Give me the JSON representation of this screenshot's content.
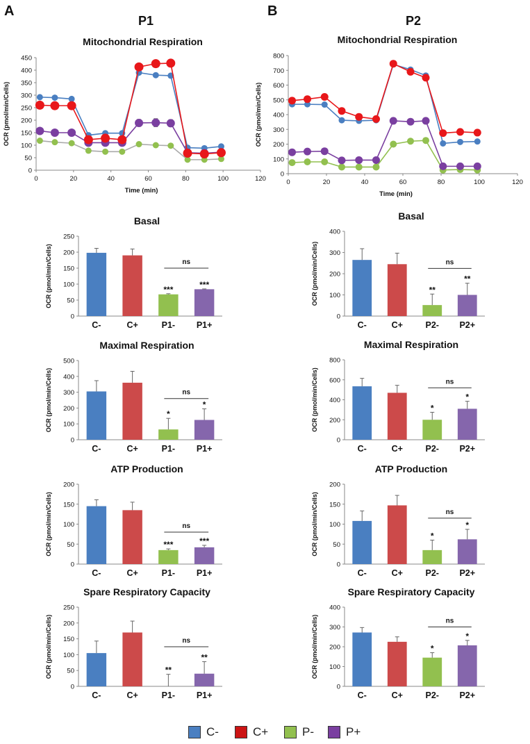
{
  "panels": [
    {
      "letter": "A",
      "title": "P1"
    },
    {
      "letter": "B",
      "title": "P2"
    }
  ],
  "legend": [
    {
      "label": "C-",
      "color": "#4a7fc1"
    },
    {
      "label": "C+",
      "color": "#cc1414"
    },
    {
      "label": "P-",
      "color": "#92c04f"
    },
    {
      "label": "P+",
      "color": "#7a3fa0"
    }
  ],
  "chart_data": [
    {
      "id": "p1-mito",
      "type": "line",
      "title": "Mitochondrial Respiration",
      "xlabel": "Time (min)",
      "ylabel": "OCR (pmol/min/Cells)",
      "xlim": [
        0,
        120
      ],
      "xticks": [
        0,
        20,
        40,
        60,
        80,
        100,
        120
      ],
      "ylim": [
        0,
        450
      ],
      "yticks": [
        0,
        50,
        100,
        150,
        200,
        250,
        300,
        350,
        400,
        450
      ],
      "x": [
        2,
        10,
        19,
        28,
        37,
        46,
        55,
        64,
        72,
        81,
        90,
        99
      ],
      "series": [
        {
          "name": "C-",
          "color": "#4a7fc1",
          "lineColor": "#4a7fc1",
          "marker": 4.5,
          "values": [
            292,
            290,
            285,
            140,
            148,
            148,
            390,
            380,
            378,
            90,
            88,
            95
          ]
        },
        {
          "name": "P-",
          "color": "#92c04f",
          "lineColor": "#aaaaaa",
          "marker": 4.5,
          "values": [
            118,
            112,
            108,
            78,
            74,
            74,
            104,
            100,
            98,
            42,
            42,
            45
          ]
        },
        {
          "name": "P+",
          "color": "#7a3fa0",
          "lineColor": "#7a3fa0",
          "marker": 6,
          "values": [
            157,
            150,
            150,
            110,
            110,
            110,
            189,
            190,
            188,
            70,
            68,
            72
          ],
          "errors": [
            0,
            0,
            0,
            0,
            0,
            0,
            14,
            16,
            14,
            0,
            0,
            0
          ]
        },
        {
          "name": "C+",
          "color": "#e8171a",
          "lineColor": "#e8171a",
          "marker": 6.5,
          "values": [
            260,
            258,
            258,
            122,
            128,
            122,
            413,
            426,
            428,
            68,
            65,
            70
          ]
        }
      ]
    },
    {
      "id": "p2-mito",
      "type": "line",
      "title": "Mitochondrial Respiration",
      "xlabel": "Time (min)",
      "ylabel": "OCR (pmol/min/Cells)",
      "xlim": [
        0,
        120
      ],
      "xticks": [
        0,
        20,
        40,
        60,
        80,
        100,
        120
      ],
      "ylim": [
        0,
        800
      ],
      "yticks": [
        0,
        100,
        200,
        300,
        400,
        500,
        600,
        700,
        800
      ],
      "x": [
        2,
        10,
        19,
        28,
        37,
        46,
        55,
        64,
        72,
        81,
        90,
        99
      ],
      "series": [
        {
          "name": "P-",
          "color": "#92c04f",
          "lineColor": "#92c04f",
          "marker": 5,
          "values": [
            75,
            80,
            80,
            45,
            45,
            45,
            200,
            220,
            225,
            25,
            28,
            25
          ]
        },
        {
          "name": "P+",
          "color": "#7a3fa0",
          "lineColor": "#7a3fa0",
          "marker": 5.5,
          "values": [
            145,
            150,
            152,
            90,
            92,
            92,
            358,
            352,
            358,
            50,
            50,
            50
          ]
        },
        {
          "name": "C-",
          "color": "#4a7fc1",
          "lineColor": "#4a7fc1",
          "marker": 4.5,
          "values": [
            470,
            470,
            468,
            362,
            358,
            362,
            740,
            705,
            665,
            205,
            215,
            218
          ]
        },
        {
          "name": "C+",
          "color": "#e8171a",
          "lineColor": "#e8171a",
          "marker": 5.5,
          "values": [
            495,
            505,
            520,
            425,
            385,
            370,
            745,
            690,
            650,
            275,
            283,
            278
          ]
        }
      ]
    },
    {
      "id": "p1-basal",
      "type": "bar",
      "title": "Basal",
      "ylabel": "OCR (pmol/min/Cells)",
      "categories": [
        "C-",
        "C+",
        "P1-",
        "P1+"
      ],
      "values": [
        198,
        190,
        68,
        84
      ],
      "errors": [
        14,
        20,
        2,
        1
      ],
      "colors": [
        "#4a7fc1",
        "#cc4a4a",
        "#92c04f",
        "#8566ac"
      ],
      "sig": [
        "",
        "",
        "***",
        "***"
      ],
      "ylim": [
        0,
        250
      ],
      "yticks": [
        0,
        50,
        100,
        150,
        200,
        250
      ],
      "ns": {
        "label": "ns",
        "from": 2,
        "to": 3,
        "y": 150
      }
    },
    {
      "id": "p2-basal",
      "type": "bar",
      "title": "Basal",
      "ylabel": "OCR (pmol/min/Cells)",
      "categories": [
        "C-",
        "C+",
        "P2-",
        "P2+"
      ],
      "values": [
        265,
        245,
        52,
        100
      ],
      "errors": [
        53,
        52,
        52,
        55
      ],
      "colors": [
        "#4a7fc1",
        "#cc4a4a",
        "#92c04f",
        "#8566ac"
      ],
      "sig": [
        "",
        "",
        "**",
        "**"
      ],
      "ylim": [
        0,
        400
      ],
      "yticks": [
        0,
        100,
        200,
        300,
        400
      ],
      "ns": {
        "label": "ns",
        "from": 2,
        "to": 3,
        "y": 225
      }
    },
    {
      "id": "p1-maximal",
      "type": "bar",
      "title": "Maximal Respiration",
      "ylabel": "OCR (pmol/min/Cells)",
      "categories": [
        "C-",
        "C+",
        "P1-",
        "P1+"
      ],
      "values": [
        305,
        360,
        65,
        125
      ],
      "errors": [
        68,
        72,
        70,
        70
      ],
      "colors": [
        "#4a7fc1",
        "#cc4a4a",
        "#92c04f",
        "#8566ac"
      ],
      "sig": [
        "",
        "",
        "*",
        "*"
      ],
      "ylim": [
        0,
        500
      ],
      "yticks": [
        0,
        100,
        200,
        300,
        400,
        500
      ],
      "ns": {
        "label": "ns",
        "from": 2,
        "to": 3,
        "y": 260
      }
    },
    {
      "id": "p2-maximal",
      "type": "bar",
      "title": "Maximal Respiration",
      "ylabel": "OCR (pmol/min/Cells)",
      "categories": [
        "C-",
        "C+",
        "P2-",
        "P2+"
      ],
      "values": [
        535,
        470,
        200,
        310
      ],
      "errors": [
        80,
        75,
        75,
        75
      ],
      "colors": [
        "#4a7fc1",
        "#cc4a4a",
        "#92c04f",
        "#8566ac"
      ],
      "sig": [
        "",
        "",
        "*",
        "*"
      ],
      "ylim": [
        0,
        800
      ],
      "yticks": [
        0,
        200,
        400,
        600,
        800
      ],
      "ns": {
        "label": "ns",
        "from": 2,
        "to": 3,
        "y": 520
      }
    },
    {
      "id": "p1-atp",
      "type": "bar",
      "title": "ATP Production",
      "ylabel": "OCR (pmol/min/Cells)",
      "categories": [
        "C-",
        "C+",
        "P1-",
        "P1+"
      ],
      "values": [
        145,
        135,
        35,
        42
      ],
      "errors": [
        16,
        20,
        3,
        5
      ],
      "colors": [
        "#4a7fc1",
        "#cc4a4a",
        "#92c04f",
        "#8566ac"
      ],
      "sig": [
        "",
        "",
        "***",
        "***"
      ],
      "ylim": [
        0,
        200
      ],
      "yticks": [
        0,
        50,
        100,
        150,
        200
      ],
      "ns": {
        "label": "ns",
        "from": 2,
        "to": 3,
        "y": 80
      }
    },
    {
      "id": "p2-atp",
      "type": "bar",
      "title": "ATP Production",
      "ylabel": "OCR (pmol/min/Cells)",
      "categories": [
        "C-",
        "C+",
        "P2-",
        "P2+"
      ],
      "values": [
        108,
        147,
        35,
        62
      ],
      "errors": [
        25,
        25,
        25,
        25
      ],
      "colors": [
        "#4a7fc1",
        "#cc4a4a",
        "#92c04f",
        "#8566ac"
      ],
      "sig": [
        "",
        "",
        "*",
        "*"
      ],
      "ylim": [
        0,
        200
      ],
      "yticks": [
        0,
        50,
        100,
        150,
        200
      ],
      "ns": {
        "label": "ns",
        "from": 2,
        "to": 3,
        "y": 115
      }
    },
    {
      "id": "p1-spare",
      "type": "bar",
      "title": "Spare Respiratory Capacity",
      "ylabel": "OCR (pmol/min/Cells)",
      "categories": [
        "C-",
        "C+",
        "P1-",
        "P1+"
      ],
      "values": [
        105,
        170,
        0,
        40
      ],
      "errors": [
        38,
        36,
        38,
        38
      ],
      "colors": [
        "#4a7fc1",
        "#cc4a4a",
        "#92c04f",
        "#8566ac"
      ],
      "sig": [
        "",
        "",
        "**",
        "**"
      ],
      "ylim": [
        0,
        250
      ],
      "yticks": [
        0,
        50,
        100,
        150,
        200,
        250
      ],
      "ns": {
        "label": "ns",
        "from": 2,
        "to": 3,
        "y": 125
      }
    },
    {
      "id": "p2-spare",
      "type": "bar",
      "title": "Spare Respiratory Capacity",
      "ylabel": "OCR (pmol/min/Cells)",
      "categories": [
        "C-",
        "C+",
        "P2-",
        "P2+"
      ],
      "values": [
        272,
        225,
        145,
        207
      ],
      "errors": [
        25,
        25,
        25,
        25
      ],
      "colors": [
        "#4a7fc1",
        "#cc4a4a",
        "#92c04f",
        "#8566ac"
      ],
      "sig": [
        "",
        "",
        "*",
        "*"
      ],
      "ylim": [
        0,
        400
      ],
      "yticks": [
        0,
        100,
        200,
        300,
        400
      ],
      "ns": {
        "label": "ns",
        "from": 2,
        "to": 3,
        "y": 300
      }
    }
  ]
}
